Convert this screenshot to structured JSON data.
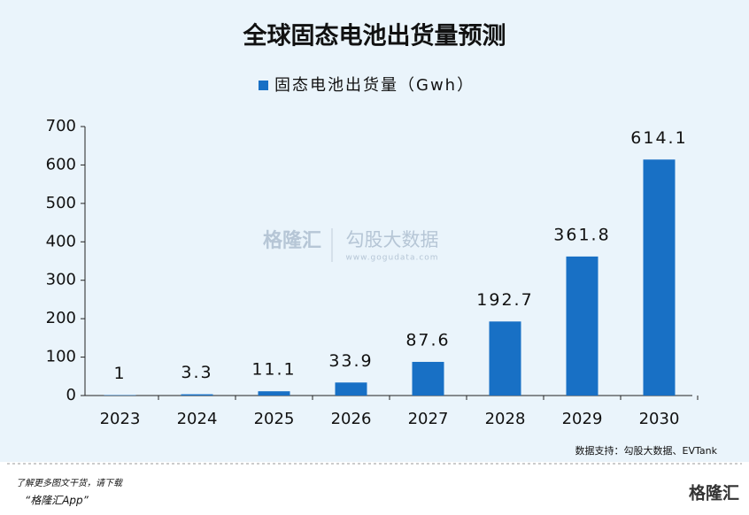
{
  "chart_data": {
    "type": "bar",
    "title": "全球固态电池出货量预测",
    "series": [
      {
        "name": "固态电池出货量（Gwh）",
        "color": "#1870c5",
        "values": [
          1,
          3.3,
          11.1,
          33.9,
          87.6,
          192.7,
          361.8,
          614.1
        ]
      }
    ],
    "categories": [
      "2023",
      "2024",
      "2025",
      "2026",
      "2027",
      "2028",
      "2029",
      "2030"
    ],
    "ylim": [
      0,
      700
    ],
    "yticks": [
      0,
      100,
      200,
      300,
      400,
      500,
      600,
      700
    ],
    "source": "数据支持：勾股大数据、EVTank"
  },
  "watermark": {
    "brand": "格隆汇",
    "site": "勾股大数据",
    "url": "www.gogudata.com"
  },
  "footer": {
    "line1": "了解更多图文干货，请下载",
    "line2": "“格隆汇App”",
    "logo": "格隆汇"
  }
}
